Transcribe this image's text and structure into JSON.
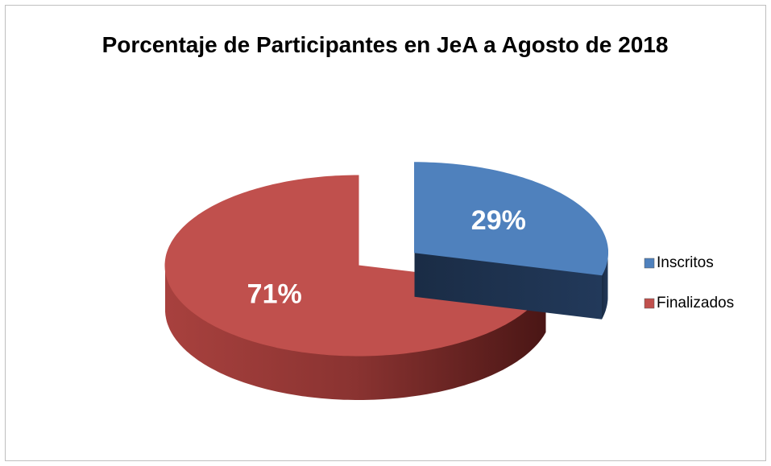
{
  "chart_data": {
    "type": "pie",
    "title": "Porcentaje de Participantes en JeA a Agosto de 2018",
    "categories": [
      "Inscritos",
      "Finalizados"
    ],
    "values": [
      29,
      71
    ],
    "value_labels": [
      "29%",
      "71%"
    ],
    "colors": [
      "#4f81bd",
      "#c0504d"
    ],
    "legend": "right"
  }
}
